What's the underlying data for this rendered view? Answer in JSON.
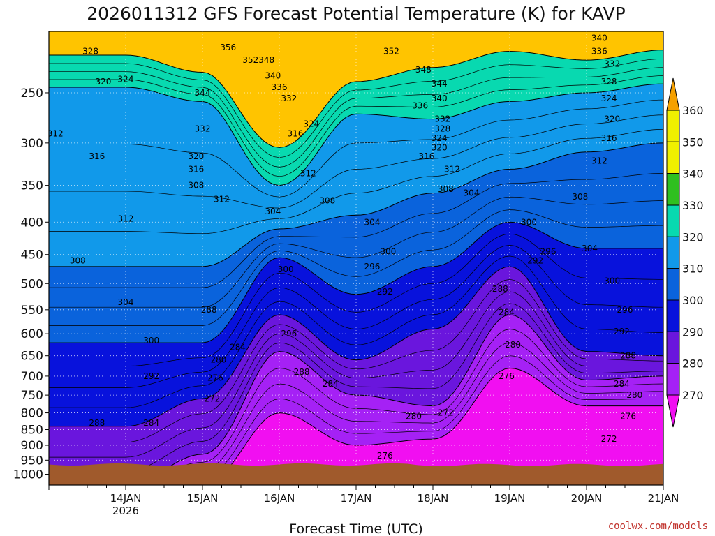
{
  "chart_data": {
    "type": "heatmap",
    "title": "2026011312 GFS Forecast Potential Temperature (K) for KAVP",
    "xlabel": "Forecast Time (UTC)",
    "ylabel": "",
    "credit": "coolwx.com/models",
    "y_scale": "log-pressure",
    "y_axis_units": "hPa",
    "y_range": [
      1040,
      200
    ],
    "y_ticks": [
      250,
      300,
      350,
      400,
      450,
      500,
      550,
      600,
      650,
      700,
      750,
      800,
      850,
      900,
      950,
      1000
    ],
    "x_range_hours": [
      -12,
      180
    ],
    "x_ticks": [
      {
        "label": "14JAN",
        "sub": "2026",
        "hour": 12
      },
      {
        "label": "15JAN",
        "sub": "",
        "hour": 36
      },
      {
        "label": "16JAN",
        "sub": "",
        "hour": 60
      },
      {
        "label": "17JAN",
        "sub": "",
        "hour": 84
      },
      {
        "label": "18JAN",
        "sub": "",
        "hour": 108
      },
      {
        "label": "19JAN",
        "sub": "",
        "hour": 132
      },
      {
        "label": "20JAN",
        "sub": "",
        "hour": 156
      },
      {
        "label": "21JAN",
        "sub": "",
        "hour": 180
      }
    ],
    "grid": true,
    "colorbar": {
      "position": "right",
      "levels": [
        270,
        280,
        290,
        300,
        310,
        320,
        330,
        340,
        350,
        360
      ],
      "colors": [
        "#f10ff1",
        "#a521f5",
        "#6a16dd",
        "#0812dc",
        "#0a63dc",
        "#1199ea",
        "#08d9b0",
        "#2fc020",
        "#f0f000",
        "#f5a000"
      ]
    },
    "times": [
      "14JAN",
      "15JAN",
      "16JAN",
      "17JAN",
      "18JAN",
      "19JAN",
      "20JAN",
      "21JAN"
    ],
    "series": [
      {
        "name": "330",
        "values": [
          218,
          232,
          305,
          240,
          228,
          215,
          222,
          214
        ]
      },
      {
        "name": "320",
        "values": [
          245,
          258,
          350,
          270,
          275,
          258,
          250,
          242
        ]
      },
      {
        "name": "310",
        "values": [
          470,
          470,
          410,
          390,
          360,
          330,
          310,
          300
        ]
      },
      {
        "name": "300",
        "values": [
          620,
          620,
          455,
          520,
          470,
          400,
          440,
          440
        ]
      },
      {
        "name": "290",
        "values": [
          840,
          760,
          560,
          660,
          590,
          470,
          640,
          650
        ]
      },
      {
        "name": "280",
        "values": [
          1040,
          930,
          640,
          750,
          780,
          560,
          710,
          700
        ]
      },
      {
        "name": "270",
        "values": [
          1040,
          1040,
          800,
          900,
          880,
          680,
          780,
          780
        ]
      }
    ],
    "contour_labels": [
      {
        "text": "328",
        "hour": 1,
        "p": 215
      },
      {
        "text": "320",
        "hour": 5,
        "p": 240
      },
      {
        "text": "324",
        "hour": 12,
        "p": 238
      },
      {
        "text": "312",
        "hour": -10,
        "p": 290
      },
      {
        "text": "316",
        "hour": 3,
        "p": 315
      },
      {
        "text": "312",
        "hour": 12,
        "p": 395
      },
      {
        "text": "308",
        "hour": -3,
        "p": 460
      },
      {
        "text": "304",
        "hour": 12,
        "p": 535
      },
      {
        "text": "300",
        "hour": 20,
        "p": 615
      },
      {
        "text": "292",
        "hour": 20,
        "p": 700
      },
      {
        "text": "288",
        "hour": 3,
        "p": 830
      },
      {
        "text": "284",
        "hour": 20,
        "p": 830
      },
      {
        "text": "356",
        "hour": 44,
        "p": 212
      },
      {
        "text": "352",
        "hour": 51,
        "p": 222
      },
      {
        "text": "348",
        "hour": 56,
        "p": 222
      },
      {
        "text": "344",
        "hour": 36,
        "p": 250
      },
      {
        "text": "340",
        "hour": 58,
        "p": 235
      },
      {
        "text": "336",
        "hour": 60,
        "p": 245
      },
      {
        "text": "332",
        "hour": 63,
        "p": 255
      },
      {
        "text": "332",
        "hour": 36,
        "p": 285
      },
      {
        "text": "320",
        "hour": 34,
        "p": 315
      },
      {
        "text": "316",
        "hour": 34,
        "p": 330
      },
      {
        "text": "308",
        "hour": 34,
        "p": 350
      },
      {
        "text": "312",
        "hour": 42,
        "p": 368
      },
      {
        "text": "316",
        "hour": 65,
        "p": 290
      },
      {
        "text": "324",
        "hour": 70,
        "p": 280
      },
      {
        "text": "312",
        "hour": 69,
        "p": 335
      },
      {
        "text": "308",
        "hour": 75,
        "p": 370
      },
      {
        "text": "304",
        "hour": 58,
        "p": 385
      },
      {
        "text": "300",
        "hour": 62,
        "p": 475
      },
      {
        "text": "288",
        "hour": 38,
        "p": 550
      },
      {
        "text": "296",
        "hour": 63,
        "p": 600
      },
      {
        "text": "280",
        "hour": 41,
        "p": 660
      },
      {
        "text": "284",
        "hour": 47,
        "p": 630
      },
      {
        "text": "276",
        "hour": 40,
        "p": 705
      },
      {
        "text": "272",
        "hour": 39,
        "p": 760
      },
      {
        "text": "288",
        "hour": 67,
        "p": 690
      },
      {
        "text": "284",
        "hour": 76,
        "p": 720
      },
      {
        "text": "352",
        "hour": 95,
        "p": 215
      },
      {
        "text": "348",
        "hour": 105,
        "p": 230
      },
      {
        "text": "344",
        "hour": 110,
        "p": 242
      },
      {
        "text": "340",
        "hour": 110,
        "p": 255
      },
      {
        "text": "336",
        "hour": 104,
        "p": 262
      },
      {
        "text": "332",
        "hour": 111,
        "p": 275
      },
      {
        "text": "328",
        "hour": 111,
        "p": 285
      },
      {
        "text": "324",
        "hour": 110,
        "p": 295
      },
      {
        "text": "320",
        "hour": 110,
        "p": 305
      },
      {
        "text": "316",
        "hour": 106,
        "p": 315
      },
      {
        "text": "312",
        "hour": 114,
        "p": 330
      },
      {
        "text": "308",
        "hour": 112,
        "p": 355
      },
      {
        "text": "304",
        "hour": 120,
        "p": 360
      },
      {
        "text": "304",
        "hour": 89,
        "p": 400
      },
      {
        "text": "300",
        "hour": 94,
        "p": 445
      },
      {
        "text": "296",
        "hour": 89,
        "p": 470
      },
      {
        "text": "292",
        "hour": 93,
        "p": 515
      },
      {
        "text": "288",
        "hour": 129,
        "p": 510
      },
      {
        "text": "284",
        "hour": 131,
        "p": 555
      },
      {
        "text": "280",
        "hour": 133,
        "p": 625
      },
      {
        "text": "276",
        "hour": 131,
        "p": 700
      },
      {
        "text": "272",
        "hour": 112,
        "p": 800
      },
      {
        "text": "280",
        "hour": 102,
        "p": 810
      },
      {
        "text": "276",
        "hour": 93,
        "p": 935
      },
      {
        "text": "300",
        "hour": 138,
        "p": 400
      },
      {
        "text": "296",
        "hour": 144,
        "p": 445
      },
      {
        "text": "292",
        "hour": 140,
        "p": 460
      },
      {
        "text": "340",
        "hour": 160,
        "p": 205
      },
      {
        "text": "336",
        "hour": 160,
        "p": 215
      },
      {
        "text": "332",
        "hour": 164,
        "p": 225
      },
      {
        "text": "328",
        "hour": 163,
        "p": 240
      },
      {
        "text": "324",
        "hour": 163,
        "p": 255
      },
      {
        "text": "320",
        "hour": 164,
        "p": 275
      },
      {
        "text": "316",
        "hour": 163,
        "p": 295
      },
      {
        "text": "312",
        "hour": 160,
        "p": 320
      },
      {
        "text": "308",
        "hour": 154,
        "p": 365
      },
      {
        "text": "304",
        "hour": 157,
        "p": 440
      },
      {
        "text": "300",
        "hour": 164,
        "p": 495
      },
      {
        "text": "296",
        "hour": 168,
        "p": 550
      },
      {
        "text": "292",
        "hour": 167,
        "p": 595
      },
      {
        "text": "288",
        "hour": 169,
        "p": 650
      },
      {
        "text": "284",
        "hour": 167,
        "p": 720
      },
      {
        "text": "280",
        "hour": 171,
        "p": 750
      },
      {
        "text": "276",
        "hour": 169,
        "p": 810
      },
      {
        "text": "272",
        "hour": 163,
        "p": 880
      }
    ]
  }
}
